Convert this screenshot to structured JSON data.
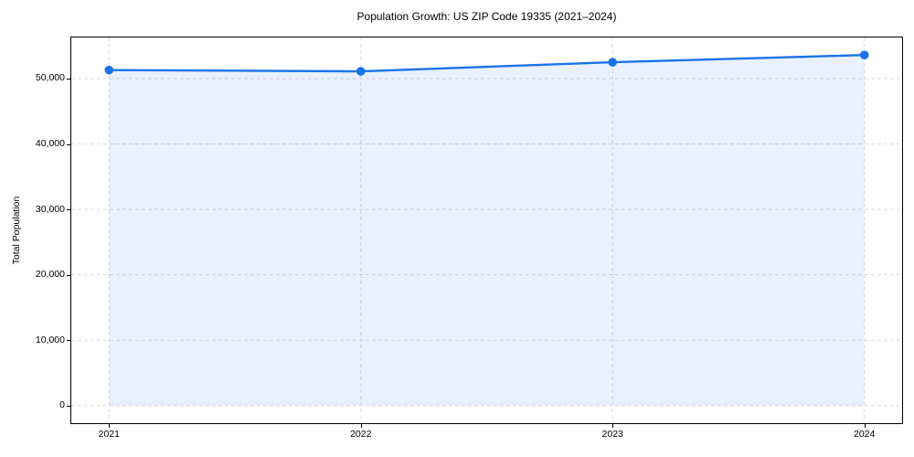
{
  "figure": {
    "background": "#ffffff"
  },
  "chart_data": {
    "type": "area",
    "title": "Population Growth: US ZIP Code 19335 (2021–2024)",
    "xlabel": "",
    "ylabel": "Total Population",
    "x": [
      2021,
      2022,
      2023,
      2024
    ],
    "series": [
      {
        "name": "Total Population",
        "values": [
          51300,
          51100,
          52500,
          53600
        ]
      }
    ],
    "xticks": [
      2021,
      2022,
      2023,
      2024
    ],
    "yticks": [
      0,
      10000,
      20000,
      30000,
      40000,
      50000
    ],
    "xlim": [
      2020.85,
      2024.15
    ],
    "ylim": [
      -2680,
      56280
    ],
    "grid": true,
    "grid_style": "dashed",
    "legend": "none",
    "marker": "circle",
    "colors": {
      "line": "#1a73e8",
      "fill": "rgba(26,115,232,0.10)",
      "grid": "#dcdcdc",
      "axis": "#000000",
      "text": "#000000"
    }
  }
}
